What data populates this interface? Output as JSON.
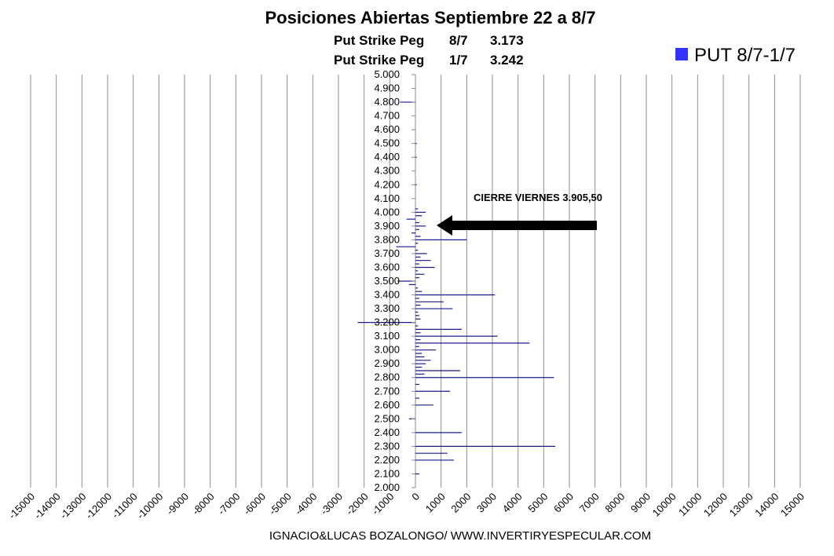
{
  "chart_data": {
    "type": "bar",
    "orientation": "horizontal",
    "title": "Posiciones Abiertas Septiembre 22 a 8/7",
    "subtitles": [
      {
        "label": "Put Strike Peg",
        "date": "8/7",
        "value": "3.173"
      },
      {
        "label": "Put Strike Peg",
        "date": "1/7",
        "value": "3.242"
      }
    ],
    "legend": {
      "label": "PUT 8/7-1/7",
      "position": "top-right",
      "color": "#3333ff"
    },
    "bar_color": "#1a1a8c",
    "annotation": {
      "text": "CIERRE VIERNES 3.905,50",
      "value": 3905.5
    },
    "footer": "IGNACIO&LUCAS BOZALONGO/ WWW.INVERTIRYESPECULAR.COM",
    "xlim": [
      -15000,
      15000
    ],
    "ylim": [
      2000,
      5000
    ],
    "grid": "vertical",
    "xticks": [
      "-15000",
      "-14000",
      "-13000",
      "-12000",
      "-11000",
      "-10000",
      "-9000",
      "-8000",
      "-7000",
      "-6000",
      "-5000",
      "-4000",
      "-3000",
      "-2000",
      "-1000",
      "0",
      "1000",
      "2000",
      "3000",
      "4000",
      "5000",
      "6000",
      "7000",
      "8000",
      "9000",
      "10000",
      "11000",
      "12000",
      "13000",
      "14000",
      "15000"
    ],
    "yticks": [
      "2.000",
      "2.100",
      "2.200",
      "2.300",
      "2.400",
      "2.500",
      "2.600",
      "2.700",
      "2.800",
      "2.900",
      "3.000",
      "3.100",
      "3.200",
      "3.300",
      "3.400",
      "3.500",
      "3.600",
      "3.700",
      "3.800",
      "3.900",
      "4.000",
      "4.100",
      "4.200",
      "4.300",
      "4.400",
      "4.500",
      "4.600",
      "4.700",
      "4.800",
      "4.900",
      "5.000"
    ],
    "strikes": [
      2100,
      2200,
      2250,
      2300,
      2400,
      2500,
      2600,
      2650,
      2700,
      2750,
      2800,
      2825,
      2850,
      2875,
      2900,
      2925,
      2950,
      2975,
      3000,
      3025,
      3050,
      3075,
      3100,
      3125,
      3150,
      3175,
      3200,
      3225,
      3250,
      3275,
      3300,
      3325,
      3350,
      3375,
      3400,
      3425,
      3450,
      3475,
      3500,
      3525,
      3550,
      3575,
      3600,
      3625,
      3650,
      3675,
      3700,
      3725,
      3750,
      3775,
      3800,
      3825,
      3850,
      3875,
      3900,
      3925,
      3950,
      3975,
      4000,
      4025,
      4200,
      4400,
      4500,
      4800
    ],
    "values": [
      150,
      1500,
      1250,
      5450,
      1800,
      -250,
      700,
      150,
      1350,
      150,
      5400,
      350,
      1750,
      250,
      400,
      600,
      350,
      250,
      800,
      150,
      4450,
      200,
      3200,
      200,
      1800,
      100,
      -2250,
      200,
      150,
      100,
      1450,
      200,
      1100,
      150,
      3100,
      250,
      100,
      -250,
      -700,
      150,
      350,
      100,
      750,
      150,
      600,
      200,
      450,
      100,
      -750,
      100,
      2000,
      200,
      -150,
      150,
      400,
      150,
      -350,
      250,
      400,
      100,
      50,
      50,
      50,
      -600
    ]
  }
}
